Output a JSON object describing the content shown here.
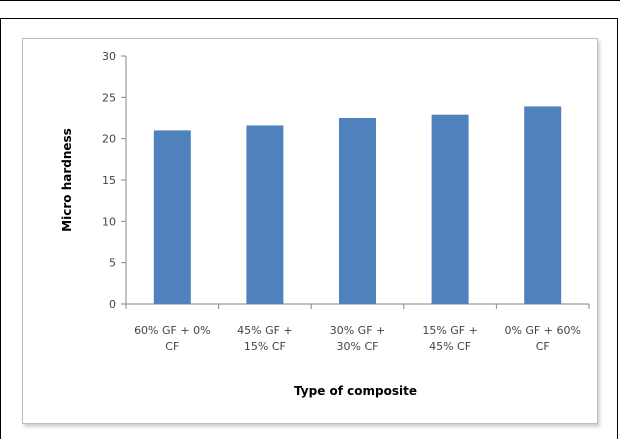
{
  "chart_data": {
    "type": "bar",
    "title": "",
    "xlabel": "Type of composite",
    "ylabel": "Micro hardness",
    "ylim": [
      0,
      30
    ],
    "yticks": [
      "0",
      "5",
      "10",
      "15",
      "20",
      "25",
      "30"
    ],
    "categories": [
      [
        "60% GF + 0%",
        "CF"
      ],
      [
        "45% GF +",
        "15% CF"
      ],
      [
        "30% GF +",
        "30% CF"
      ],
      [
        "15% GF +",
        "45% CF"
      ],
      [
        "0% GF + 60%",
        "CF"
      ]
    ],
    "values": [
      21.0,
      21.6,
      22.5,
      22.9,
      23.9
    ],
    "bar_color": "#4f81bd",
    "grid": false,
    "legend": "none"
  }
}
